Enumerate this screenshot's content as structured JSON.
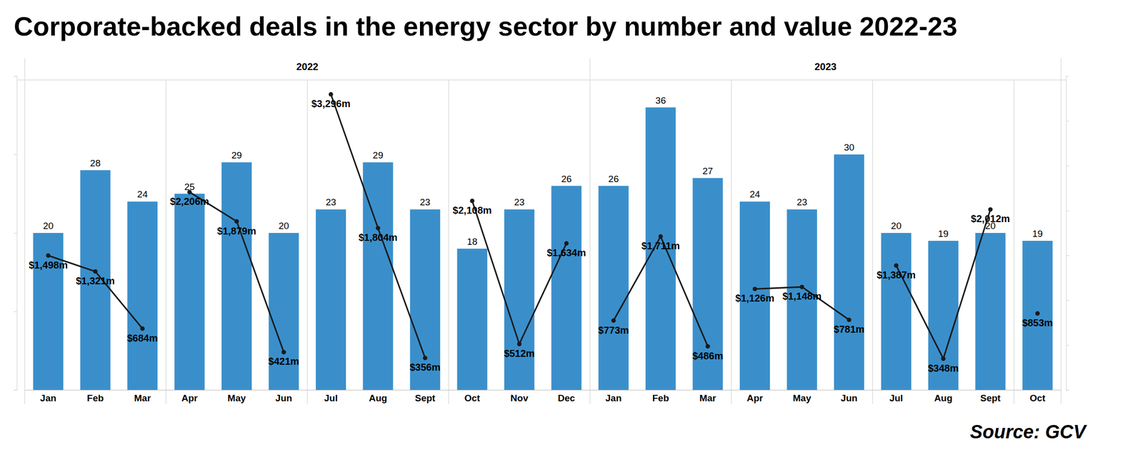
{
  "chart_data": {
    "type": "bar",
    "title": "Corporate-backed deals in the energy sector by number and value 2022-23",
    "source": "Source: GCV",
    "groups": [
      {
        "label": "2022",
        "count": 12
      },
      {
        "label": "2023",
        "count": 10
      }
    ],
    "categories": [
      "Jan",
      "Feb",
      "Mar",
      "Apr",
      "May",
      "Jun",
      "Jul",
      "Aug",
      "Sept",
      "Oct",
      "Nov",
      "Dec",
      "Jan",
      "Feb",
      "Mar",
      "Apr",
      "May",
      "Jun",
      "Jul",
      "Aug",
      "Sept",
      "Oct"
    ],
    "series": [
      {
        "type": "bar",
        "color": "#3a8fcb",
        "data_labels": true,
        "values": [
          20,
          28,
          24,
          25,
          29,
          20,
          23,
          29,
          23,
          18,
          23,
          26,
          26,
          36,
          27,
          24,
          23,
          30,
          20,
          19,
          20,
          19
        ]
      },
      {
        "type": "line",
        "color": "#1a1a1a",
        "marker": "circle",
        "axis": "y2",
        "data_labels": true,
        "values": [
          1498,
          1321,
          684,
          2206,
          1879,
          421,
          3296,
          1804,
          356,
          2108,
          512,
          1634,
          773,
          1711,
          486,
          1126,
          1148,
          781,
          1387,
          348,
          2012,
          853
        ],
        "value_labels": [
          "$1,498m",
          "$1,321m",
          "$684m",
          "$2,206m",
          "$1,879m",
          "$421m",
          "$3,296m",
          "$1,804m",
          "$356m",
          "$2,108m",
          "$512m",
          "$1,634m",
          "$773m",
          "$1,711m",
          "$486m",
          "$1,126m",
          "$1,148m",
          "$781m",
          "$1,387m",
          "$348m",
          "$2,012m",
          "$853m"
        ]
      }
    ],
    "ylim": [
      0,
      40
    ],
    "yticks": [
      0,
      10,
      20,
      30,
      40
    ],
    "y2lim": [
      0,
      3500
    ],
    "y2ticks": [
      0,
      500,
      1000,
      1500,
      2000,
      2500,
      3000
    ],
    "grid": false,
    "tick_labels": "x"
  }
}
